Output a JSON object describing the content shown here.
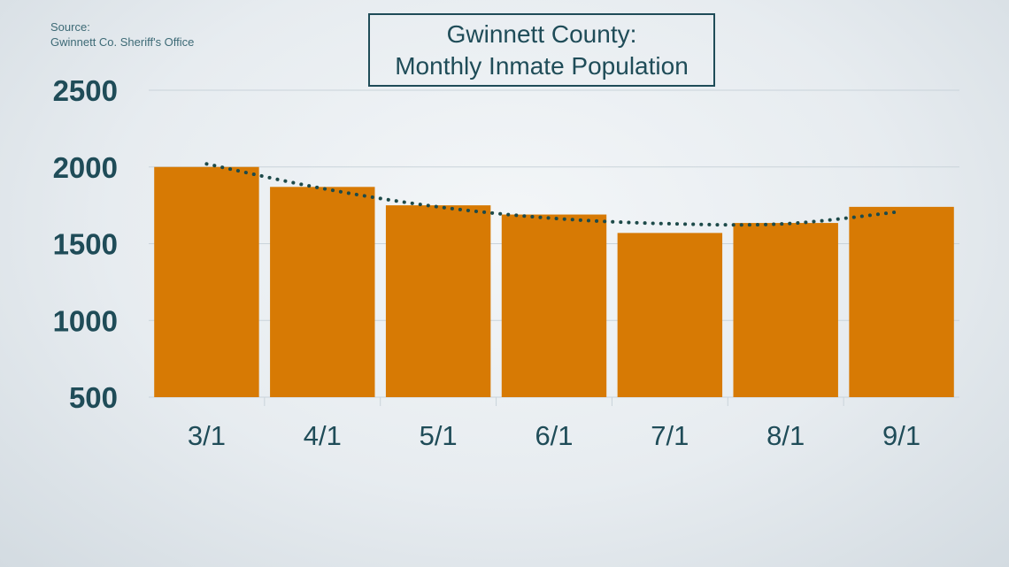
{
  "source": {
    "line1": "Source:",
    "line2": "Gwinnett Co. Sheriff's Office"
  },
  "title": {
    "line1": "Gwinnett County:",
    "line2": "Monthly Inmate Population"
  },
  "colors": {
    "bar": "#d77a04",
    "text": "#1f4c58",
    "grid": "#c9d3da",
    "trend": "#1d4a49"
  },
  "chart_data": {
    "type": "bar",
    "title": "Gwinnett County: Monthly Inmate Population",
    "categories": [
      "3/1",
      "4/1",
      "5/1",
      "6/1",
      "7/1",
      "8/1",
      "9/1"
    ],
    "values": [
      2000,
      1870,
      1750,
      1690,
      1570,
      1635,
      1740
    ],
    "trendline": [
      2020,
      1860,
      1740,
      1665,
      1630,
      1630,
      1710
    ],
    "ylim": [
      500,
      2500
    ],
    "yticks": [
      500,
      1000,
      1500,
      2000,
      2500
    ],
    "grid": true,
    "xlabel": "",
    "ylabel": ""
  }
}
